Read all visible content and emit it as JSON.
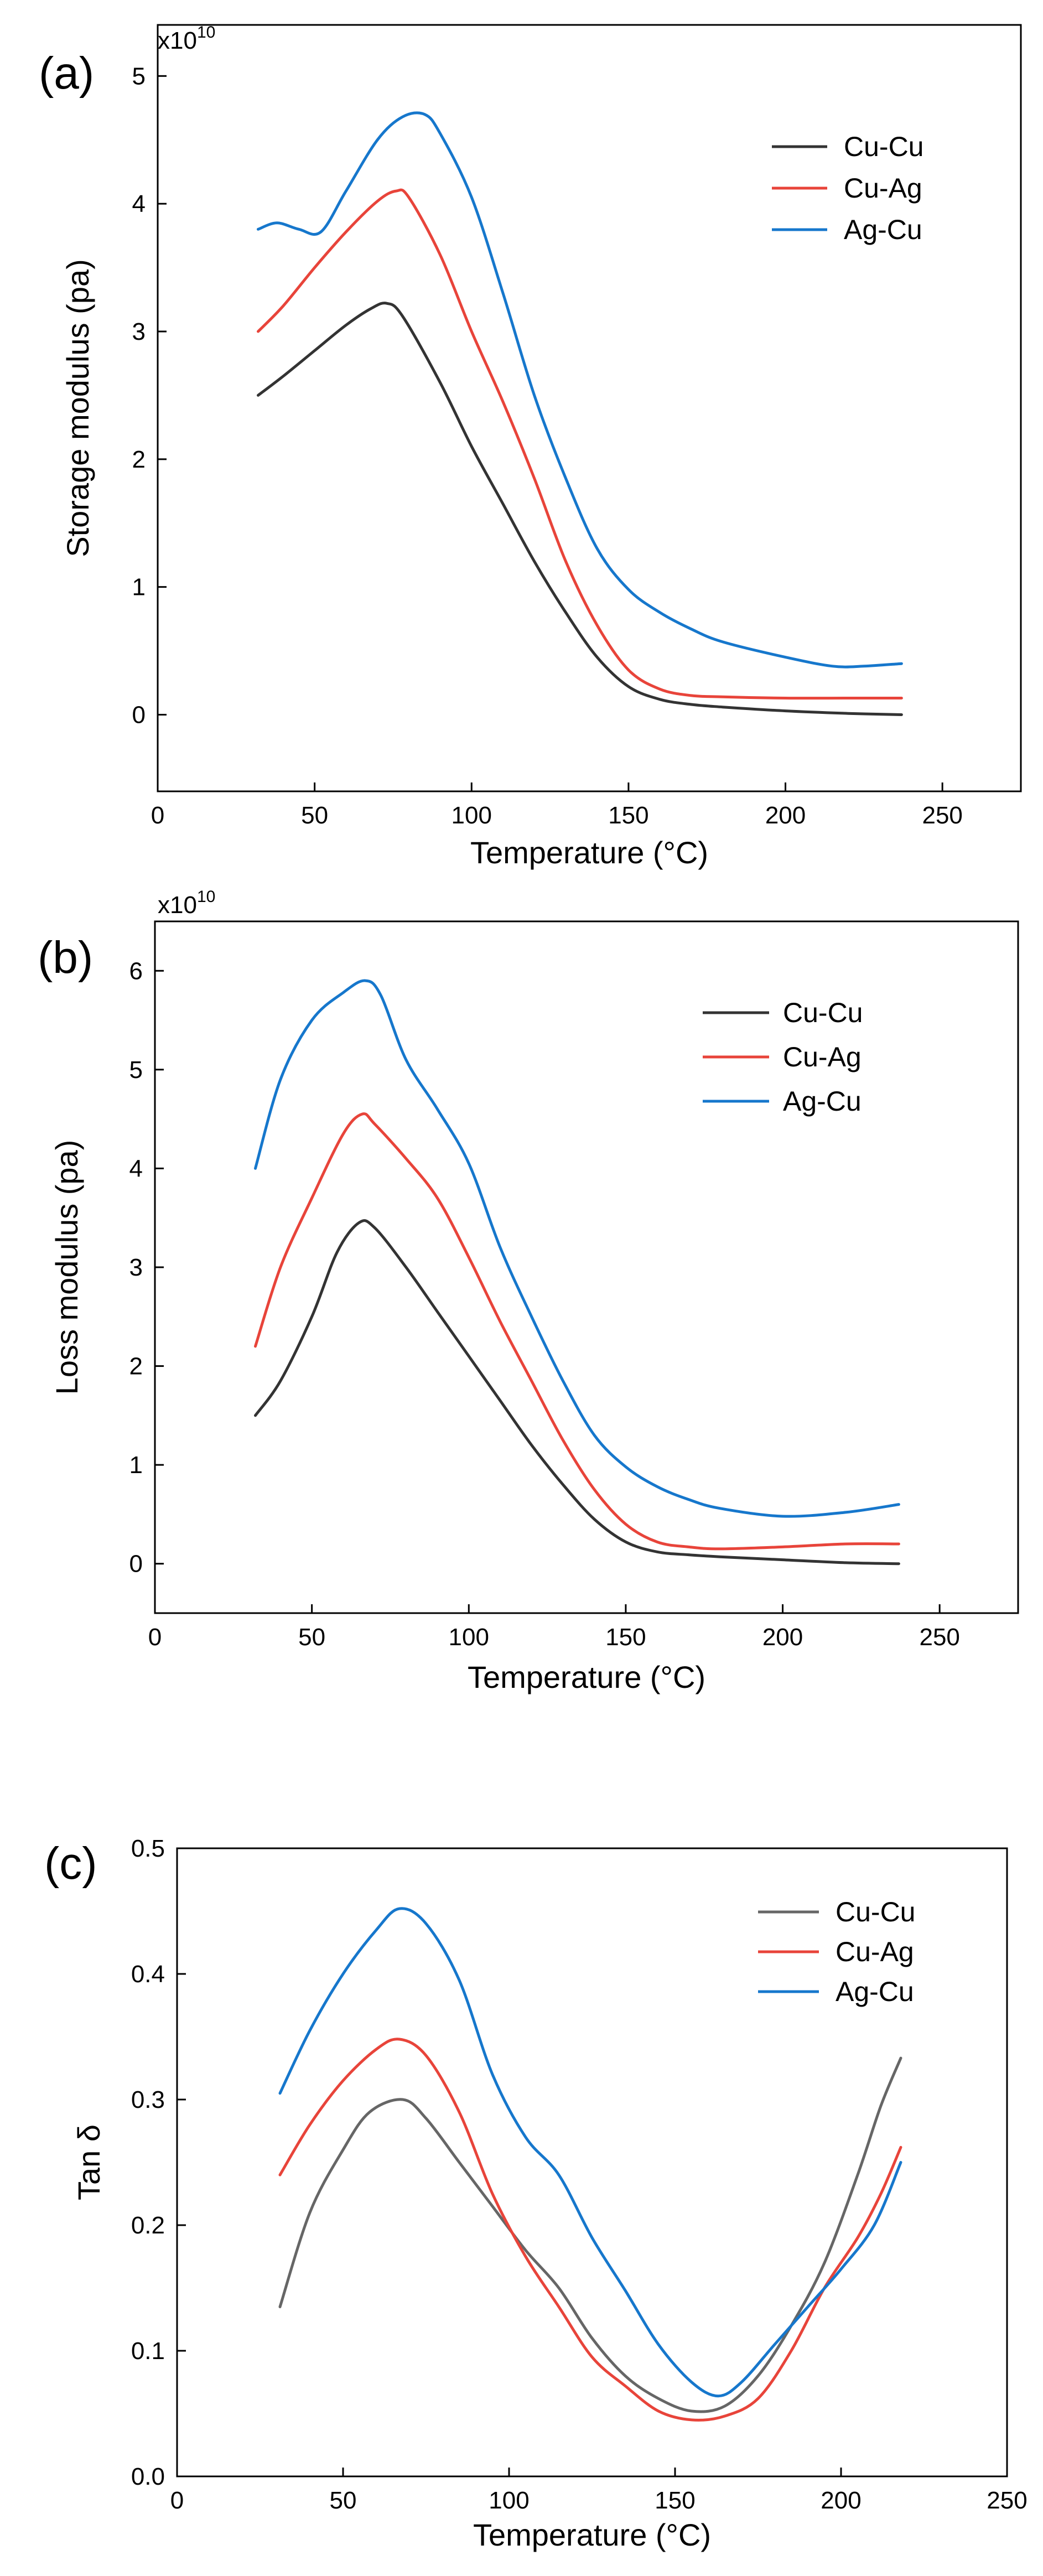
{
  "chart_data": [
    {
      "type": "line",
      "panel_label": "(a)",
      "multiplier": {
        "base": "x10",
        "exponent": "10"
      },
      "xlabel": "Temperature (°C)",
      "ylabel": "Storage modulus (pa)",
      "xlim": [
        0,
        275
      ],
      "ylim": [
        -0.6,
        5.4
      ],
      "xticks": [
        0,
        50,
        100,
        150,
        200,
        250
      ],
      "yticks": [
        0,
        1,
        2,
        3,
        4,
        5
      ],
      "legend_position": "top-right",
      "grid": false,
      "series": [
        {
          "name": "Cu-Cu",
          "color": "#333333",
          "points": [
            [
              32,
              2.5
            ],
            [
              40,
              2.65
            ],
            [
              50,
              2.85
            ],
            [
              60,
              3.05
            ],
            [
              68,
              3.18
            ],
            [
              73,
              3.22
            ],
            [
              78,
              3.12
            ],
            [
              90,
              2.6
            ],
            [
              100,
              2.1
            ],
            [
              110,
              1.65
            ],
            [
              120,
              1.2
            ],
            [
              130,
              0.8
            ],
            [
              140,
              0.45
            ],
            [
              150,
              0.22
            ],
            [
              160,
              0.12
            ],
            [
              170,
              0.08
            ],
            [
              180,
              0.06
            ],
            [
              200,
              0.03
            ],
            [
              220,
              0.01
            ],
            [
              237,
              0.0
            ]
          ]
        },
        {
          "name": "Cu-Ag",
          "color": "#e8443a",
          "points": [
            [
              32,
              3.0
            ],
            [
              40,
              3.2
            ],
            [
              50,
              3.5
            ],
            [
              60,
              3.78
            ],
            [
              70,
              4.02
            ],
            [
              76,
              4.1
            ],
            [
              80,
              4.05
            ],
            [
              90,
              3.6
            ],
            [
              100,
              3.0
            ],
            [
              110,
              2.45
            ],
            [
              120,
              1.85
            ],
            [
              130,
              1.2
            ],
            [
              140,
              0.7
            ],
            [
              150,
              0.35
            ],
            [
              160,
              0.2
            ],
            [
              170,
              0.15
            ],
            [
              180,
              0.14
            ],
            [
              200,
              0.13
            ],
            [
              220,
              0.13
            ],
            [
              237,
              0.13
            ]
          ]
        },
        {
          "name": "Ag-Cu",
          "color": "#1677cc",
          "points": [
            [
              32,
              3.8
            ],
            [
              38,
              3.85
            ],
            [
              45,
              3.8
            ],
            [
              52,
              3.78
            ],
            [
              60,
              4.1
            ],
            [
              70,
              4.5
            ],
            [
              78,
              4.68
            ],
            [
              85,
              4.7
            ],
            [
              90,
              4.55
            ],
            [
              100,
              4.05
            ],
            [
              110,
              3.3
            ],
            [
              120,
              2.5
            ],
            [
              130,
              1.85
            ],
            [
              140,
              1.3
            ],
            [
              150,
              0.98
            ],
            [
              160,
              0.8
            ],
            [
              170,
              0.67
            ],
            [
              180,
              0.57
            ],
            [
              200,
              0.45
            ],
            [
              215,
              0.38
            ],
            [
              225,
              0.38
            ],
            [
              237,
              0.4
            ]
          ]
        }
      ]
    },
    {
      "type": "line",
      "panel_label": "(b)",
      "multiplier": {
        "base": "x10",
        "exponent": "10"
      },
      "xlabel": "Temperature (°C)",
      "ylabel": "Loss modulus (pa)",
      "xlim": [
        0,
        275
      ],
      "ylim": [
        -0.5,
        6.5
      ],
      "xticks": [
        0,
        50,
        100,
        150,
        200,
        250
      ],
      "yticks": [
        0,
        1,
        2,
        3,
        4,
        5,
        6
      ],
      "legend_position": "top-right",
      "grid": false,
      "series": [
        {
          "name": "Cu-Cu",
          "color": "#333333",
          "points": [
            [
              32,
              1.5
            ],
            [
              40,
              1.85
            ],
            [
              50,
              2.5
            ],
            [
              58,
              3.15
            ],
            [
              65,
              3.45
            ],
            [
              70,
              3.4
            ],
            [
              80,
              3.0
            ],
            [
              90,
              2.55
            ],
            [
              100,
              2.1
            ],
            [
              110,
              1.65
            ],
            [
              120,
              1.2
            ],
            [
              130,
              0.8
            ],
            [
              140,
              0.45
            ],
            [
              150,
              0.22
            ],
            [
              160,
              0.12
            ],
            [
              170,
              0.09
            ],
            [
              180,
              0.07
            ],
            [
              200,
              0.04
            ],
            [
              220,
              0.01
            ],
            [
              237,
              0.0
            ]
          ]
        },
        {
          "name": "Cu-Ag",
          "color": "#e8443a",
          "points": [
            [
              32,
              2.2
            ],
            [
              40,
              3.0
            ],
            [
              50,
              3.7
            ],
            [
              60,
              4.35
            ],
            [
              66,
              4.55
            ],
            [
              70,
              4.45
            ],
            [
              80,
              4.1
            ],
            [
              90,
              3.7
            ],
            [
              100,
              3.1
            ],
            [
              110,
              2.45
            ],
            [
              120,
              1.85
            ],
            [
              130,
              1.25
            ],
            [
              140,
              0.75
            ],
            [
              150,
              0.4
            ],
            [
              160,
              0.22
            ],
            [
              170,
              0.17
            ],
            [
              180,
              0.15
            ],
            [
              200,
              0.17
            ],
            [
              220,
              0.2
            ],
            [
              237,
              0.2
            ]
          ]
        },
        {
          "name": "Ag-Cu",
          "color": "#1677cc",
          "points": [
            [
              32,
              4.0
            ],
            [
              40,
              4.9
            ],
            [
              50,
              5.5
            ],
            [
              60,
              5.78
            ],
            [
              67,
              5.9
            ],
            [
              72,
              5.75
            ],
            [
              80,
              5.1
            ],
            [
              90,
              4.6
            ],
            [
              100,
              4.05
            ],
            [
              110,
              3.2
            ],
            [
              120,
              2.5
            ],
            [
              130,
              1.85
            ],
            [
              140,
              1.3
            ],
            [
              150,
              0.98
            ],
            [
              160,
              0.78
            ],
            [
              170,
              0.65
            ],
            [
              180,
              0.56
            ],
            [
              200,
              0.48
            ],
            [
              220,
              0.52
            ],
            [
              237,
              0.6
            ]
          ]
        }
      ]
    },
    {
      "type": "line",
      "panel_label": "(c)",
      "xlabel": "Temperature (°C)",
      "ylabel": "Tan δ",
      "xlim": [
        0,
        250
      ],
      "ylim": [
        0.0,
        0.5
      ],
      "xticks": [
        0,
        50,
        100,
        150,
        200,
        250
      ],
      "yticks": [
        0.0,
        0.1,
        0.2,
        0.3,
        0.4,
        0.5
      ],
      "legend_position": "top-right",
      "grid": false,
      "series": [
        {
          "name": "Cu-Cu",
          "color": "#666666",
          "points": [
            [
              31,
              0.135
            ],
            [
              40,
              0.21
            ],
            [
              50,
              0.26
            ],
            [
              58,
              0.29
            ],
            [
              68,
              0.3
            ],
            [
              75,
              0.285
            ],
            [
              85,
              0.25
            ],
            [
              95,
              0.215
            ],
            [
              105,
              0.18
            ],
            [
              115,
              0.15
            ],
            [
              125,
              0.11
            ],
            [
              135,
              0.08
            ],
            [
              145,
              0.062
            ],
            [
              155,
              0.052
            ],
            [
              165,
              0.056
            ],
            [
              175,
              0.08
            ],
            [
              185,
              0.12
            ],
            [
              195,
              0.17
            ],
            [
              205,
              0.24
            ],
            [
              212,
              0.295
            ],
            [
              218,
              0.333
            ]
          ]
        },
        {
          "name": "Cu-Ag",
          "color": "#e8443a",
          "points": [
            [
              31,
              0.24
            ],
            [
              40,
              0.28
            ],
            [
              50,
              0.315
            ],
            [
              60,
              0.34
            ],
            [
              67,
              0.348
            ],
            [
              75,
              0.335
            ],
            [
              85,
              0.29
            ],
            [
              95,
              0.225
            ],
            [
              105,
              0.175
            ],
            [
              115,
              0.135
            ],
            [
              125,
              0.095
            ],
            [
              135,
              0.072
            ],
            [
              145,
              0.052
            ],
            [
              155,
              0.045
            ],
            [
              165,
              0.048
            ],
            [
              175,
              0.062
            ],
            [
              185,
              0.1
            ],
            [
              195,
              0.15
            ],
            [
              205,
              0.19
            ],
            [
              212,
              0.225
            ],
            [
              218,
              0.262
            ]
          ]
        },
        {
          "name": "Ag-Cu",
          "color": "#1677cc",
          "points": [
            [
              31,
              0.305
            ],
            [
              40,
              0.355
            ],
            [
              50,
              0.4
            ],
            [
              60,
              0.435
            ],
            [
              67,
              0.452
            ],
            [
              75,
              0.44
            ],
            [
              85,
              0.395
            ],
            [
              95,
              0.32
            ],
            [
              105,
              0.27
            ],
            [
              115,
              0.24
            ],
            [
              125,
              0.19
            ],
            [
              135,
              0.148
            ],
            [
              145,
              0.105
            ],
            [
              155,
              0.075
            ],
            [
              163,
              0.064
            ],
            [
              170,
              0.075
            ],
            [
              180,
              0.105
            ],
            [
              190,
              0.135
            ],
            [
              200,
              0.165
            ],
            [
              210,
              0.2
            ],
            [
              218,
              0.25
            ]
          ]
        }
      ]
    }
  ]
}
